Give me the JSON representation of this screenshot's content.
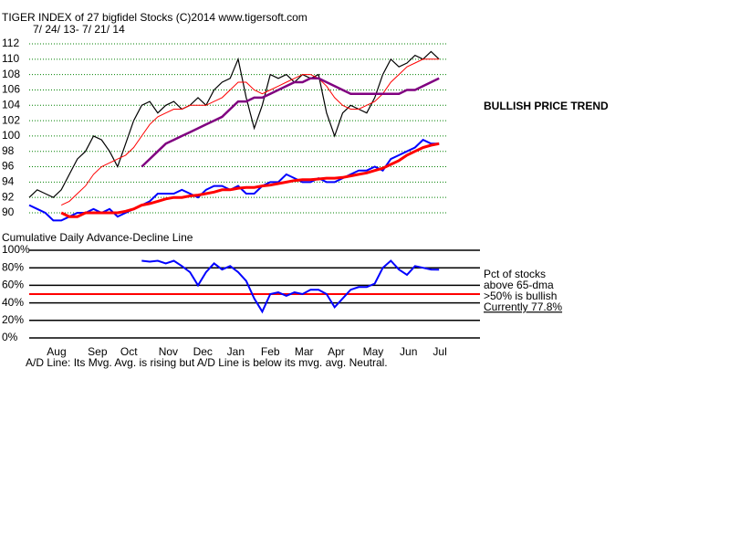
{
  "chart_data": [
    {
      "type": "line",
      "title": "TIGER INDEX of  27 bigfidel Stocks  (C)2014  www.tigersoft.com",
      "subtitle": "7/ 24/ 13- 7/ 21/ 14",
      "annotation": "BULLISH PRICE TREND",
      "ad_label": "Cumulative Daily Advance-Decline Line",
      "x": [
        0,
        1,
        2,
        3,
        4,
        5,
        6,
        7,
        8,
        9,
        10,
        11,
        12,
        13,
        14,
        15,
        16,
        17,
        18,
        19,
        20,
        21,
        22,
        23,
        24,
        25,
        26,
        27,
        28,
        29,
        30,
        31,
        32,
        33,
        34,
        35,
        36,
        37,
        38,
        39,
        40,
        41,
        42,
        43,
        44,
        45,
        46,
        47,
        48,
        49,
        50,
        51
      ],
      "xlim": [
        0,
        52
      ],
      "ylim": [
        88,
        113
      ],
      "yticks": [
        90,
        92,
        94,
        96,
        98,
        100,
        102,
        104,
        106,
        108,
        110,
        112
      ],
      "grid": true,
      "grid_color": "#008000",
      "series": [
        {
          "color": "#000000",
          "width": 1.2,
          "values": [
            92,
            93,
            92.5,
            92,
            93,
            95,
            97,
            98,
            100,
            99.5,
            98,
            96,
            99,
            102,
            104,
            104.5,
            103,
            104,
            104.5,
            103.5,
            104,
            105,
            104,
            106,
            107,
            107.5,
            110,
            105,
            101,
            104,
            108,
            107.5,
            108,
            107,
            108,
            107.5,
            108,
            103,
            100,
            103,
            104,
            103.5,
            103,
            105,
            108,
            110,
            109,
            109.5,
            110.5,
            110,
            111,
            110
          ]
        },
        {
          "color": "#ff0000",
          "width": 1,
          "values": [
            null,
            null,
            null,
            null,
            91,
            91.5,
            92.5,
            93.5,
            95,
            96,
            96.5,
            97,
            97.5,
            98.5,
            100,
            101.5,
            102.5,
            103,
            103.5,
            103.5,
            104,
            104,
            104,
            104.5,
            105,
            106,
            107,
            107,
            106,
            105.5,
            106,
            106.5,
            107,
            107.5,
            108,
            108,
            107.5,
            106.5,
            105,
            104,
            103.5,
            103.5,
            104,
            104.5,
            105.5,
            107,
            108,
            109,
            109.5,
            110,
            110,
            110
          ]
        },
        {
          "color": "#800080",
          "width": 2.5,
          "values": [
            null,
            null,
            null,
            null,
            null,
            null,
            null,
            null,
            null,
            null,
            null,
            null,
            null,
            null,
            96,
            97,
            98,
            99,
            99.5,
            100,
            100.5,
            101,
            101.5,
            102,
            102.5,
            103.5,
            104.5,
            104.5,
            105,
            105,
            105.5,
            106,
            106.5,
            107,
            107,
            107.5,
            107.5,
            107,
            106.5,
            106,
            105.5,
            105.5,
            105.5,
            105.5,
            105.5,
            105.5,
            105.5,
            106,
            106,
            106.5,
            107,
            107.5
          ]
        },
        {
          "color": "#0000ff",
          "width": 2,
          "values": [
            91,
            90.5,
            90,
            89,
            89,
            89.5,
            90,
            90,
            90.5,
            90,
            90.5,
            89.5,
            90,
            90.5,
            91,
            91.5,
            92.5,
            92.5,
            92.5,
            93,
            92.5,
            92,
            93,
            93.5,
            93.5,
            93,
            93.5,
            92.5,
            92.5,
            93.5,
            94,
            94,
            95,
            94.5,
            94,
            94,
            94.5,
            94,
            94,
            94.5,
            95,
            95.5,
            95.5,
            96,
            95.5,
            97,
            97.5,
            98,
            98.5,
            99.5,
            99,
            99
          ]
        },
        {
          "color": "#ff0000",
          "width": 3,
          "values": [
            null,
            null,
            null,
            null,
            90,
            89.5,
            89.5,
            90,
            90,
            90,
            90,
            90,
            90.2,
            90.5,
            91,
            91.2,
            91.5,
            91.8,
            92,
            92,
            92.2,
            92.3,
            92.5,
            92.7,
            93,
            93,
            93.2,
            93.3,
            93.3,
            93.5,
            93.6,
            93.8,
            94,
            94.2,
            94.3,
            94.3,
            94.4,
            94.5,
            94.5,
            94.6,
            94.8,
            95,
            95.2,
            95.5,
            95.8,
            96.3,
            96.8,
            97.5,
            98,
            98.5,
            98.8,
            99
          ]
        }
      ]
    },
    {
      "type": "line",
      "notes": [
        "Pct of stocks",
        "above 65-dma",
        ">50% is bullish",
        "Currently  77.8%"
      ],
      "footer": "A/D Line: Its Mvg. Avg. is rising but A/D Line is below its mvg. avg. Neutral.",
      "x": [
        0,
        1,
        2,
        3,
        4,
        5,
        6,
        7,
        8,
        9,
        10,
        11,
        12,
        13,
        14,
        15,
        16,
        17,
        18,
        19,
        20,
        21,
        22,
        23,
        24,
        25,
        26,
        27,
        28,
        29,
        30,
        31,
        32,
        33,
        34,
        35,
        36,
        37,
        38,
        39,
        40,
        41,
        42,
        43,
        44,
        45,
        46,
        47,
        48,
        49,
        50,
        51
      ],
      "xlim": [
        0,
        52
      ],
      "xticks": [
        {
          "value": 3.4,
          "label": "Aug"
        },
        {
          "value": 8.5,
          "label": "Sep"
        },
        {
          "value": 12.4,
          "label": "Oct"
        },
        {
          "value": 17.3,
          "label": "Nov"
        },
        {
          "value": 21.6,
          "label": "Dec"
        },
        {
          "value": 25.7,
          "label": "Jan"
        },
        {
          "value": 30,
          "label": "Feb"
        },
        {
          "value": 34.2,
          "label": "Mar"
        },
        {
          "value": 38.2,
          "label": "Apr"
        },
        {
          "value": 42.8,
          "label": "May"
        },
        {
          "value": 47.2,
          "label": "Jun"
        },
        {
          "value": 51.1,
          "label": "Jul"
        }
      ],
      "ylim": [
        0,
        100
      ],
      "yticks": [
        {
          "value": 100,
          "label": "100%"
        },
        {
          "value": 80,
          "label": "80%"
        },
        {
          "value": 60,
          "label": "60%"
        },
        {
          "value": 40,
          "label": "40%"
        },
        {
          "value": 20,
          "label": "20%"
        },
        {
          "value": 0,
          "label": "0%"
        }
      ],
      "threshold": 50,
      "threshold_color": "#ff0000",
      "series": [
        {
          "color": "#0000ff",
          "width": 2,
          "values": [
            null,
            null,
            null,
            null,
            null,
            null,
            null,
            null,
            null,
            null,
            null,
            null,
            null,
            null,
            88,
            87,
            88,
            85,
            88,
            82,
            75,
            60,
            75,
            85,
            78,
            82,
            75,
            65,
            45,
            30,
            50,
            52,
            48,
            52,
            50,
            55,
            55,
            50,
            35,
            45,
            55,
            58,
            58,
            62,
            80,
            88,
            78,
            72,
            82,
            80,
            78,
            77.8
          ]
        }
      ]
    }
  ]
}
